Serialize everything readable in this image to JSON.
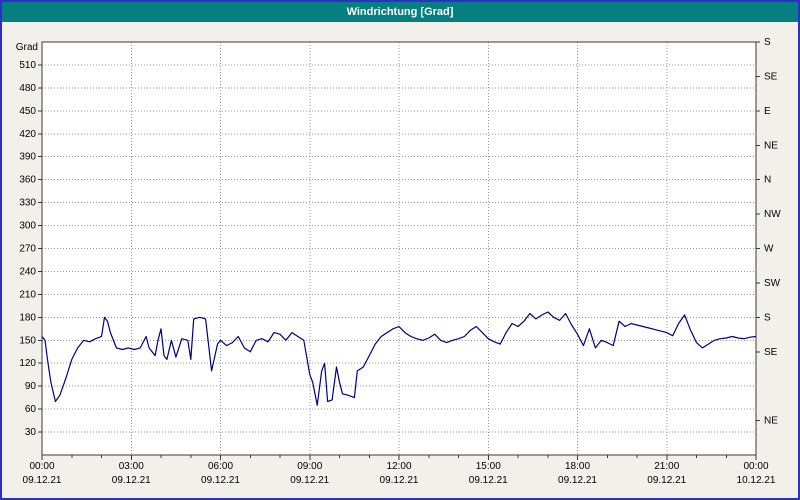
{
  "title": "Windrichtung [Grad]",
  "colors": {
    "window_border": "#2e2ec8",
    "titlebar_bg": "#067f80",
    "titlebar_text": "#ffffff",
    "outer_bg": "#f1f0ea",
    "plot_bg": "#ffffff",
    "grid": "#979797",
    "frame": "#3a3a3a",
    "series": "#000080",
    "label_text": "#000000"
  },
  "chart_data": {
    "type": "line",
    "title": "Windrichtung [Grad]",
    "ylabel_left": "Grad",
    "ylim": [
      0,
      540
    ],
    "xlim_hours": [
      0,
      24
    ],
    "grid": "dotted",
    "legend_position": "none",
    "y_ticks_left": [
      30,
      60,
      90,
      120,
      150,
      180,
      210,
      240,
      270,
      300,
      330,
      360,
      390,
      420,
      450,
      480,
      510
    ],
    "y_right_labels": [
      {
        "deg": 540,
        "label": "S"
      },
      {
        "deg": 495,
        "label": "SE"
      },
      {
        "deg": 450,
        "label": "E"
      },
      {
        "deg": 405,
        "label": "NE"
      },
      {
        "deg": 360,
        "label": "N"
      },
      {
        "deg": 315,
        "label": "NW"
      },
      {
        "deg": 270,
        "label": "W"
      },
      {
        "deg": 225,
        "label": "SW"
      },
      {
        "deg": 180,
        "label": "S"
      },
      {
        "deg": 135,
        "label": "SE"
      },
      {
        "deg": 45,
        "label": "NE"
      }
    ],
    "x_major_ticks": [
      {
        "hour": 0,
        "time": "00:00",
        "date": "09.12.21"
      },
      {
        "hour": 3,
        "time": "03:00",
        "date": "09.12.21"
      },
      {
        "hour": 6,
        "time": "06:00",
        "date": "09.12.21"
      },
      {
        "hour": 9,
        "time": "09:00",
        "date": "09.12.21"
      },
      {
        "hour": 12,
        "time": "12:00",
        "date": "09.12.21"
      },
      {
        "hour": 15,
        "time": "15:00",
        "date": "09.12.21"
      },
      {
        "hour": 18,
        "time": "18:00",
        "date": "09.12.21"
      },
      {
        "hour": 21,
        "time": "21:00",
        "date": "09.12.21"
      },
      {
        "hour": 24,
        "time": "00:00",
        "date": "10.12.21"
      }
    ],
    "x_minor_tick_hours": [
      1,
      2,
      4,
      5,
      7,
      8,
      10,
      11,
      13,
      14,
      16,
      17,
      19,
      20,
      22,
      23
    ],
    "series": [
      {
        "name": "Windrichtung",
        "color": "#000080",
        "x_hours": [
          0,
          0.1,
          0.2,
          0.3,
          0.45,
          0.6,
          0.8,
          1.0,
          1.2,
          1.4,
          1.6,
          1.8,
          2.0,
          2.1,
          2.2,
          2.3,
          2.5,
          2.7,
          2.9,
          3.1,
          3.3,
          3.5,
          3.6,
          3.8,
          3.9,
          4.0,
          4.1,
          4.2,
          4.35,
          4.5,
          4.7,
          4.9,
          5.0,
          5.1,
          5.3,
          5.5,
          5.7,
          5.9,
          6.0,
          6.2,
          6.4,
          6.6,
          6.8,
          7.0,
          7.2,
          7.4,
          7.6,
          7.8,
          8.0,
          8.2,
          8.4,
          8.6,
          8.8,
          9.0,
          9.1,
          9.25,
          9.4,
          9.5,
          9.6,
          9.75,
          9.9,
          10.0,
          10.1,
          10.3,
          10.5,
          10.6,
          10.8,
          11.0,
          11.2,
          11.4,
          11.6,
          11.8,
          12.0,
          12.2,
          12.4,
          12.6,
          12.8,
          13.0,
          13.2,
          13.4,
          13.6,
          13.8,
          14.0,
          14.2,
          14.4,
          14.6,
          14.8,
          15.0,
          15.2,
          15.4,
          15.6,
          15.8,
          16.0,
          16.2,
          16.4,
          16.6,
          16.8,
          17.0,
          17.2,
          17.4,
          17.6,
          17.8,
          18.0,
          18.2,
          18.4,
          18.6,
          18.8,
          19.0,
          19.2,
          19.4,
          19.6,
          19.8,
          20.0,
          20.2,
          20.4,
          20.6,
          20.8,
          21.0,
          21.2,
          21.4,
          21.6,
          21.8,
          22.0,
          22.2,
          22.4,
          22.6,
          22.8,
          23.0,
          23.2,
          23.4,
          23.6,
          23.8,
          24.0
        ],
        "values": [
          155,
          150,
          120,
          95,
          70,
          78,
          100,
          125,
          140,
          150,
          148,
          152,
          155,
          180,
          175,
          160,
          140,
          138,
          140,
          138,
          140,
          155,
          140,
          130,
          150,
          165,
          130,
          125,
          150,
          128,
          152,
          150,
          125,
          178,
          180,
          178,
          110,
          145,
          150,
          143,
          147,
          155,
          140,
          135,
          150,
          152,
          148,
          160,
          158,
          150,
          160,
          155,
          150,
          105,
          95,
          65,
          110,
          120,
          70,
          72,
          115,
          95,
          80,
          78,
          75,
          110,
          115,
          130,
          145,
          155,
          160,
          165,
          168,
          160,
          155,
          152,
          150,
          153,
          158,
          150,
          147,
          150,
          152,
          155,
          163,
          168,
          160,
          152,
          148,
          145,
          160,
          172,
          168,
          175,
          185,
          178,
          183,
          187,
          180,
          176,
          185,
          170,
          158,
          143,
          165,
          140,
          150,
          147,
          143,
          175,
          168,
          172,
          170,
          168,
          166,
          164,
          162,
          160,
          156,
          172,
          183,
          163,
          147,
          140,
          145,
          150,
          152,
          153,
          155,
          153,
          152,
          154,
          155
        ]
      }
    ]
  }
}
